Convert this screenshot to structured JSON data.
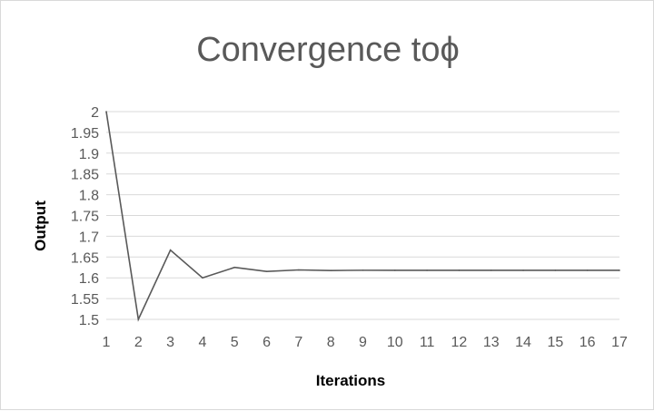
{
  "chart_data": {
    "type": "line",
    "title": "Convergence toϕ",
    "xlabel": "Iterations",
    "ylabel": "Output",
    "x": [
      1,
      2,
      3,
      4,
      5,
      6,
      7,
      8,
      9,
      10,
      11,
      12,
      13,
      14,
      15,
      16,
      17
    ],
    "series": [
      {
        "values": [
          2,
          1.5,
          1.6667,
          1.6,
          1.625,
          1.6154,
          1.619,
          1.6176,
          1.6182,
          1.618,
          1.618,
          1.618,
          1.618,
          1.618,
          1.618,
          1.618,
          1.618
        ]
      }
    ],
    "ylim": [
      1.5,
      2
    ],
    "yticks": [
      "1.5",
      "1.55",
      "1.6",
      "1.65",
      "1.7",
      "1.75",
      "1.8",
      "1.85",
      "1.9",
      "1.95",
      "2"
    ],
    "xticks": [
      "1",
      "2",
      "3",
      "4",
      "5",
      "6",
      "7",
      "8",
      "9",
      "10",
      "11",
      "12",
      "13",
      "14",
      "15",
      "16",
      "17"
    ],
    "grid": true,
    "legend": "none",
    "colors": {
      "line": "#595959",
      "grid": "#d9d9d9",
      "text": "#595959"
    }
  }
}
